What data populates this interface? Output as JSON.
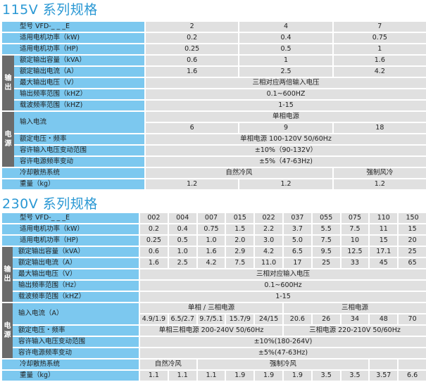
{
  "tables": [
    {
      "title": "115V 系列规格",
      "columns": 3,
      "rows": [
        {
          "label": "型号 VFD-_ _ _E",
          "cells": [
            {
              "text": "2"
            },
            {
              "text": "4"
            },
            {
              "text": "7"
            }
          ]
        },
        {
          "label": "适用电机功率（kW)",
          "cells": [
            {
              "text": "0.2"
            },
            {
              "text": "0.4"
            },
            {
              "text": "0.75"
            }
          ]
        },
        {
          "label": "适用电机功率（HP)",
          "cells": [
            {
              "text": "0.25"
            },
            {
              "text": "0.5"
            },
            {
              "text": "1"
            }
          ]
        },
        {
          "group": "输出",
          "label": "额定输出容量（kVA）",
          "cells": [
            {
              "text": "0.6"
            },
            {
              "text": "1"
            },
            {
              "text": "1.6"
            }
          ]
        },
        {
          "group": "输出",
          "label": "额定输出电流（A）",
          "cells": [
            {
              "text": "1.6"
            },
            {
              "text": "2.5"
            },
            {
              "text": "4.2"
            }
          ]
        },
        {
          "group": "输出",
          "label": "最大输出电压（V）",
          "cells": [
            {
              "text": "三相对应两倍输入电压",
              "span": 3
            }
          ]
        },
        {
          "group": "输出",
          "label": "输出频率范围（kHZ）",
          "cells": [
            {
              "text": "0.1~600HZ",
              "span": 3
            }
          ]
        },
        {
          "group": "输出",
          "label": "载波频率范围（kHZ)",
          "cells": [
            {
              "text": "1-15",
              "span": 3
            }
          ]
        },
        {
          "group": "电源",
          "label": "输入电流",
          "sub_rows": [
            [
              {
                "text": "单相电源",
                "span": 3
              }
            ],
            [
              {
                "text": "6"
              },
              {
                "text": "9"
              },
              {
                "text": "18"
              }
            ]
          ]
        },
        {
          "group": "电源",
          "label": "额定电压・频率",
          "cells": [
            {
              "text": "单相电源 100-120V  50/60Hz",
              "span": 3
            }
          ]
        },
        {
          "group": "电源",
          "label": "容许输入电压变动范围",
          "cells": [
            {
              "text": "±10%（90-132V）",
              "span": 3
            }
          ]
        },
        {
          "group": "电源",
          "label": "容许电源频率变动",
          "cells": [
            {
              "text": "±5%（47-63Hz)",
              "span": 3
            }
          ]
        },
        {
          "label": "冷却散热系统",
          "cells": [
            {
              "text": "自然冷风",
              "span": 2
            },
            {
              "text": "强制风冷"
            }
          ]
        },
        {
          "label": "重量（kg）",
          "cells": [
            {
              "text": "1.2"
            },
            {
              "text": "1.2"
            },
            {
              "text": "1.2"
            }
          ]
        }
      ]
    },
    {
      "title": "230V 系列规格",
      "columns": 10,
      "rows": [
        {
          "label": "型号 VFD-_ _ _E",
          "cells": [
            {
              "text": "002"
            },
            {
              "text": "004"
            },
            {
              "text": "007"
            },
            {
              "text": "015"
            },
            {
              "text": "022"
            },
            {
              "text": "037"
            },
            {
              "text": "055"
            },
            {
              "text": "075"
            },
            {
              "text": "110"
            },
            {
              "text": "150"
            }
          ]
        },
        {
          "label": "适用电机功率（kW）",
          "cells": [
            {
              "text": "0.2"
            },
            {
              "text": "0.4"
            },
            {
              "text": "0.75"
            },
            {
              "text": "1.5"
            },
            {
              "text": "2.2"
            },
            {
              "text": "3.7"
            },
            {
              "text": "5.5"
            },
            {
              "text": "7.5"
            },
            {
              "text": "11"
            },
            {
              "text": "15"
            }
          ]
        },
        {
          "label": "适用电机功率（HP)",
          "cells": [
            {
              "text": "0.25"
            },
            {
              "text": "0.5"
            },
            {
              "text": "1.0"
            },
            {
              "text": "2.0"
            },
            {
              "text": "3.0"
            },
            {
              "text": "5.0"
            },
            {
              "text": "7.5"
            },
            {
              "text": "10"
            },
            {
              "text": "15"
            },
            {
              "text": "20"
            }
          ]
        },
        {
          "group": "输出",
          "label": "额定输出容量（kVA）",
          "cells": [
            {
              "text": "0.6"
            },
            {
              "text": "1.0"
            },
            {
              "text": "1.6"
            },
            {
              "text": "2.9"
            },
            {
              "text": "4.2"
            },
            {
              "text": "6.5"
            },
            {
              "text": "9.5"
            },
            {
              "text": "12.5"
            },
            {
              "text": "17.1"
            },
            {
              "text": "25"
            }
          ]
        },
        {
          "group": "输出",
          "label": "额定输出电流（A）",
          "cells": [
            {
              "text": "1.6"
            },
            {
              "text": "2.5"
            },
            {
              "text": "4.2"
            },
            {
              "text": "7.5"
            },
            {
              "text": "11.0"
            },
            {
              "text": "17"
            },
            {
              "text": "25"
            },
            {
              "text": "33"
            },
            {
              "text": "45"
            },
            {
              "text": "65"
            }
          ]
        },
        {
          "group": "输出",
          "label": "最大输出电压（V）",
          "cells": [
            {
              "text": "三相对应输入电压",
              "span": 10
            }
          ]
        },
        {
          "group": "输出",
          "label": "输出频率范围（Hz）",
          "cells": [
            {
              "text": "0.1~600Hz",
              "span": 10
            }
          ]
        },
        {
          "group": "输出",
          "label": "载波频率范围（kHZ）",
          "cells": [
            {
              "text": "1-15",
              "span": 10
            }
          ]
        },
        {
          "group": "电源",
          "label": "输入电流（A）",
          "sub_rows": [
            [
              {
                "text": "单相 / 三相电源",
                "span": 5
              },
              {
                "text": "三相电源",
                "span": 5
              }
            ],
            [
              {
                "text": "4.9/1.9"
              },
              {
                "text": "6.5/2.7"
              },
              {
                "text": "9.7/5.1"
              },
              {
                "text": "15.7/9"
              },
              {
                "text": "24/15"
              },
              {
                "text": "20.6"
              },
              {
                "text": "26"
              },
              {
                "text": "34"
              },
              {
                "text": "48"
              },
              {
                "text": "70"
              }
            ]
          ]
        },
        {
          "group": "电源",
          "label": "额定电压・频率",
          "cells": [
            {
              "text": "单相三相电源 200-240V  50/60Hz",
              "span": 5
            },
            {
              "text": "三相电源 220-210V  50/60Hz",
              "span": 5
            }
          ]
        },
        {
          "group": "电源",
          "label": "容许输入电压变动范围",
          "cells": [
            {
              "text": "±10%(180-264V)",
              "span": 10
            }
          ]
        },
        {
          "group": "电源",
          "label": "容许电源频率变动",
          "cells": [
            {
              "text": "±5%(47-63Hz)",
              "span": 10
            }
          ]
        },
        {
          "label": "冷却散热系统",
          "cells": [
            {
              "text": "自然冷风",
              "span": 2
            },
            {
              "text": "强制冷风",
              "span": 6
            },
            {
              "text": ""
            },
            {
              "text": ""
            }
          ]
        },
        {
          "label": "重量（kg）",
          "cells": [
            {
              "text": "1.1"
            },
            {
              "text": "1.1"
            },
            {
              "text": "1.1"
            },
            {
              "text": "1.9"
            },
            {
              "text": "1.9"
            },
            {
              "text": "1.9"
            },
            {
              "text": "3.5"
            },
            {
              "text": "3.5"
            },
            {
              "text": "3.57"
            },
            {
              "text": "6.6"
            }
          ]
        }
      ]
    }
  ],
  "colors": {
    "title": "#2a98d4",
    "label_bg": "#7cc8ef",
    "value_bg": "#e0e0e0",
    "group_bg": "#6b6b6b"
  }
}
